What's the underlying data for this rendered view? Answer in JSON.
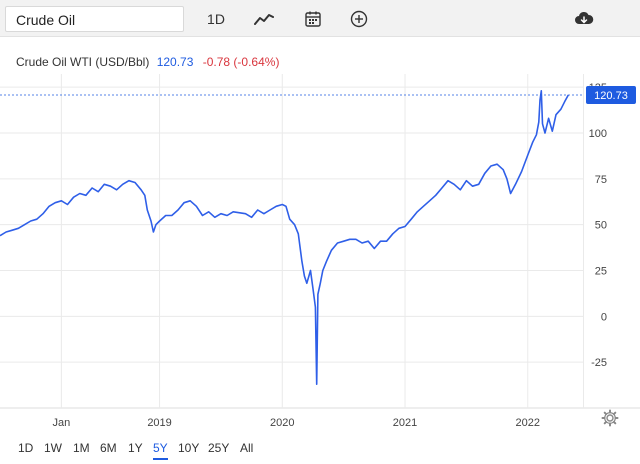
{
  "toolbar": {
    "search_value": "Crude Oil",
    "interval_label": "1D",
    "icons": [
      "line-chart-icon",
      "calendar-icon",
      "plus-circle-icon",
      "download-icon"
    ]
  },
  "header": {
    "instrument": "Crude Oil WTI (USD/Bbl)",
    "price": "120.73",
    "change": "-0.78 (-0.64%)"
  },
  "ranges": [
    {
      "label": "1D"
    },
    {
      "label": "1W"
    },
    {
      "label": "1M"
    },
    {
      "label": "6M"
    },
    {
      "label": "1Y"
    },
    {
      "label": "5Y",
      "active": true
    },
    {
      "label": "10Y"
    },
    {
      "label": "25Y"
    },
    {
      "label": "All"
    }
  ],
  "colors": {
    "line": "#2f5fe8",
    "accent": "#1e5be0",
    "negative": "#d9363e"
  },
  "chart_data": {
    "type": "line",
    "title": "",
    "xlabel": "",
    "ylabel": "",
    "x_tick_labels": [
      {
        "label": "Jan",
        "t": 0.2
      },
      {
        "label": "2019",
        "t": 1.0
      },
      {
        "label": "2020",
        "t": 2.0
      },
      {
        "label": "2021",
        "t": 3.0
      },
      {
        "label": "2022",
        "t": 4.0
      }
    ],
    "y_ticks": [
      -25,
      0,
      25,
      50,
      75,
      100,
      125
    ],
    "ylim": [
      -50,
      130
    ],
    "xlim": [
      -0.3,
      4.45
    ],
    "last_price_label": "120.73",
    "last_price": 120.73,
    "series": [
      {
        "points": [
          [
            -0.3,
            44
          ],
          [
            -0.25,
            46
          ],
          [
            -0.2,
            47
          ],
          [
            -0.15,
            48
          ],
          [
            -0.1,
            50
          ],
          [
            -0.05,
            52
          ],
          [
            0.0,
            53
          ],
          [
            0.05,
            56
          ],
          [
            0.1,
            60
          ],
          [
            0.15,
            62
          ],
          [
            0.2,
            63
          ],
          [
            0.25,
            61
          ],
          [
            0.3,
            65
          ],
          [
            0.35,
            67
          ],
          [
            0.4,
            66
          ],
          [
            0.45,
            70
          ],
          [
            0.5,
            68
          ],
          [
            0.55,
            72
          ],
          [
            0.6,
            71
          ],
          [
            0.65,
            69
          ],
          [
            0.7,
            72
          ],
          [
            0.75,
            74
          ],
          [
            0.8,
            73
          ],
          [
            0.85,
            69
          ],
          [
            0.88,
            66
          ],
          [
            0.9,
            58
          ],
          [
            0.93,
            52
          ],
          [
            0.95,
            46
          ],
          [
            0.97,
            50
          ],
          [
            1.0,
            52
          ],
          [
            1.05,
            55
          ],
          [
            1.1,
            55
          ],
          [
            1.15,
            58
          ],
          [
            1.2,
            62
          ],
          [
            1.25,
            63
          ],
          [
            1.3,
            60
          ],
          [
            1.35,
            55
          ],
          [
            1.4,
            57
          ],
          [
            1.45,
            54
          ],
          [
            1.5,
            56
          ],
          [
            1.55,
            55
          ],
          [
            1.6,
            57
          ],
          [
            1.7,
            56
          ],
          [
            1.75,
            54
          ],
          [
            1.8,
            58
          ],
          [
            1.85,
            56
          ],
          [
            1.9,
            58
          ],
          [
            1.95,
            60
          ],
          [
            2.0,
            61
          ],
          [
            2.03,
            60
          ],
          [
            2.06,
            53
          ],
          [
            2.1,
            50
          ],
          [
            2.13,
            45
          ],
          [
            2.16,
            30
          ],
          [
            2.18,
            22
          ],
          [
            2.2,
            18
          ],
          [
            2.23,
            25
          ],
          [
            2.25,
            15
          ],
          [
            2.27,
            5
          ],
          [
            2.28,
            -37
          ],
          [
            2.29,
            12
          ],
          [
            2.31,
            18
          ],
          [
            2.33,
            25
          ],
          [
            2.36,
            30
          ],
          [
            2.4,
            36
          ],
          [
            2.45,
            40
          ],
          [
            2.5,
            41
          ],
          [
            2.55,
            42
          ],
          [
            2.6,
            42
          ],
          [
            2.65,
            40
          ],
          [
            2.7,
            41
          ],
          [
            2.75,
            37
          ],
          [
            2.8,
            41
          ],
          [
            2.85,
            41
          ],
          [
            2.9,
            45
          ],
          [
            2.95,
            48
          ],
          [
            3.0,
            49
          ],
          [
            3.05,
            53
          ],
          [
            3.1,
            57
          ],
          [
            3.15,
            60
          ],
          [
            3.2,
            63
          ],
          [
            3.25,
            66
          ],
          [
            3.3,
            70
          ],
          [
            3.35,
            74
          ],
          [
            3.4,
            72
          ],
          [
            3.45,
            69
          ],
          [
            3.5,
            74
          ],
          [
            3.55,
            71
          ],
          [
            3.6,
            72
          ],
          [
            3.65,
            78
          ],
          [
            3.7,
            82
          ],
          [
            3.75,
            83
          ],
          [
            3.8,
            80
          ],
          [
            3.83,
            75
          ],
          [
            3.86,
            67
          ],
          [
            3.9,
            72
          ],
          [
            3.95,
            79
          ],
          [
            4.0,
            88
          ],
          [
            4.04,
            95
          ],
          [
            4.07,
            99
          ],
          [
            4.09,
            106
          ],
          [
            4.1,
            118
          ],
          [
            4.11,
            123
          ],
          [
            4.12,
            105
          ],
          [
            4.14,
            100
          ],
          [
            4.17,
            108
          ],
          [
            4.2,
            101
          ],
          [
            4.23,
            110
          ],
          [
            4.27,
            113
          ],
          [
            4.3,
            117
          ],
          [
            4.33,
            120.73
          ]
        ]
      }
    ]
  }
}
